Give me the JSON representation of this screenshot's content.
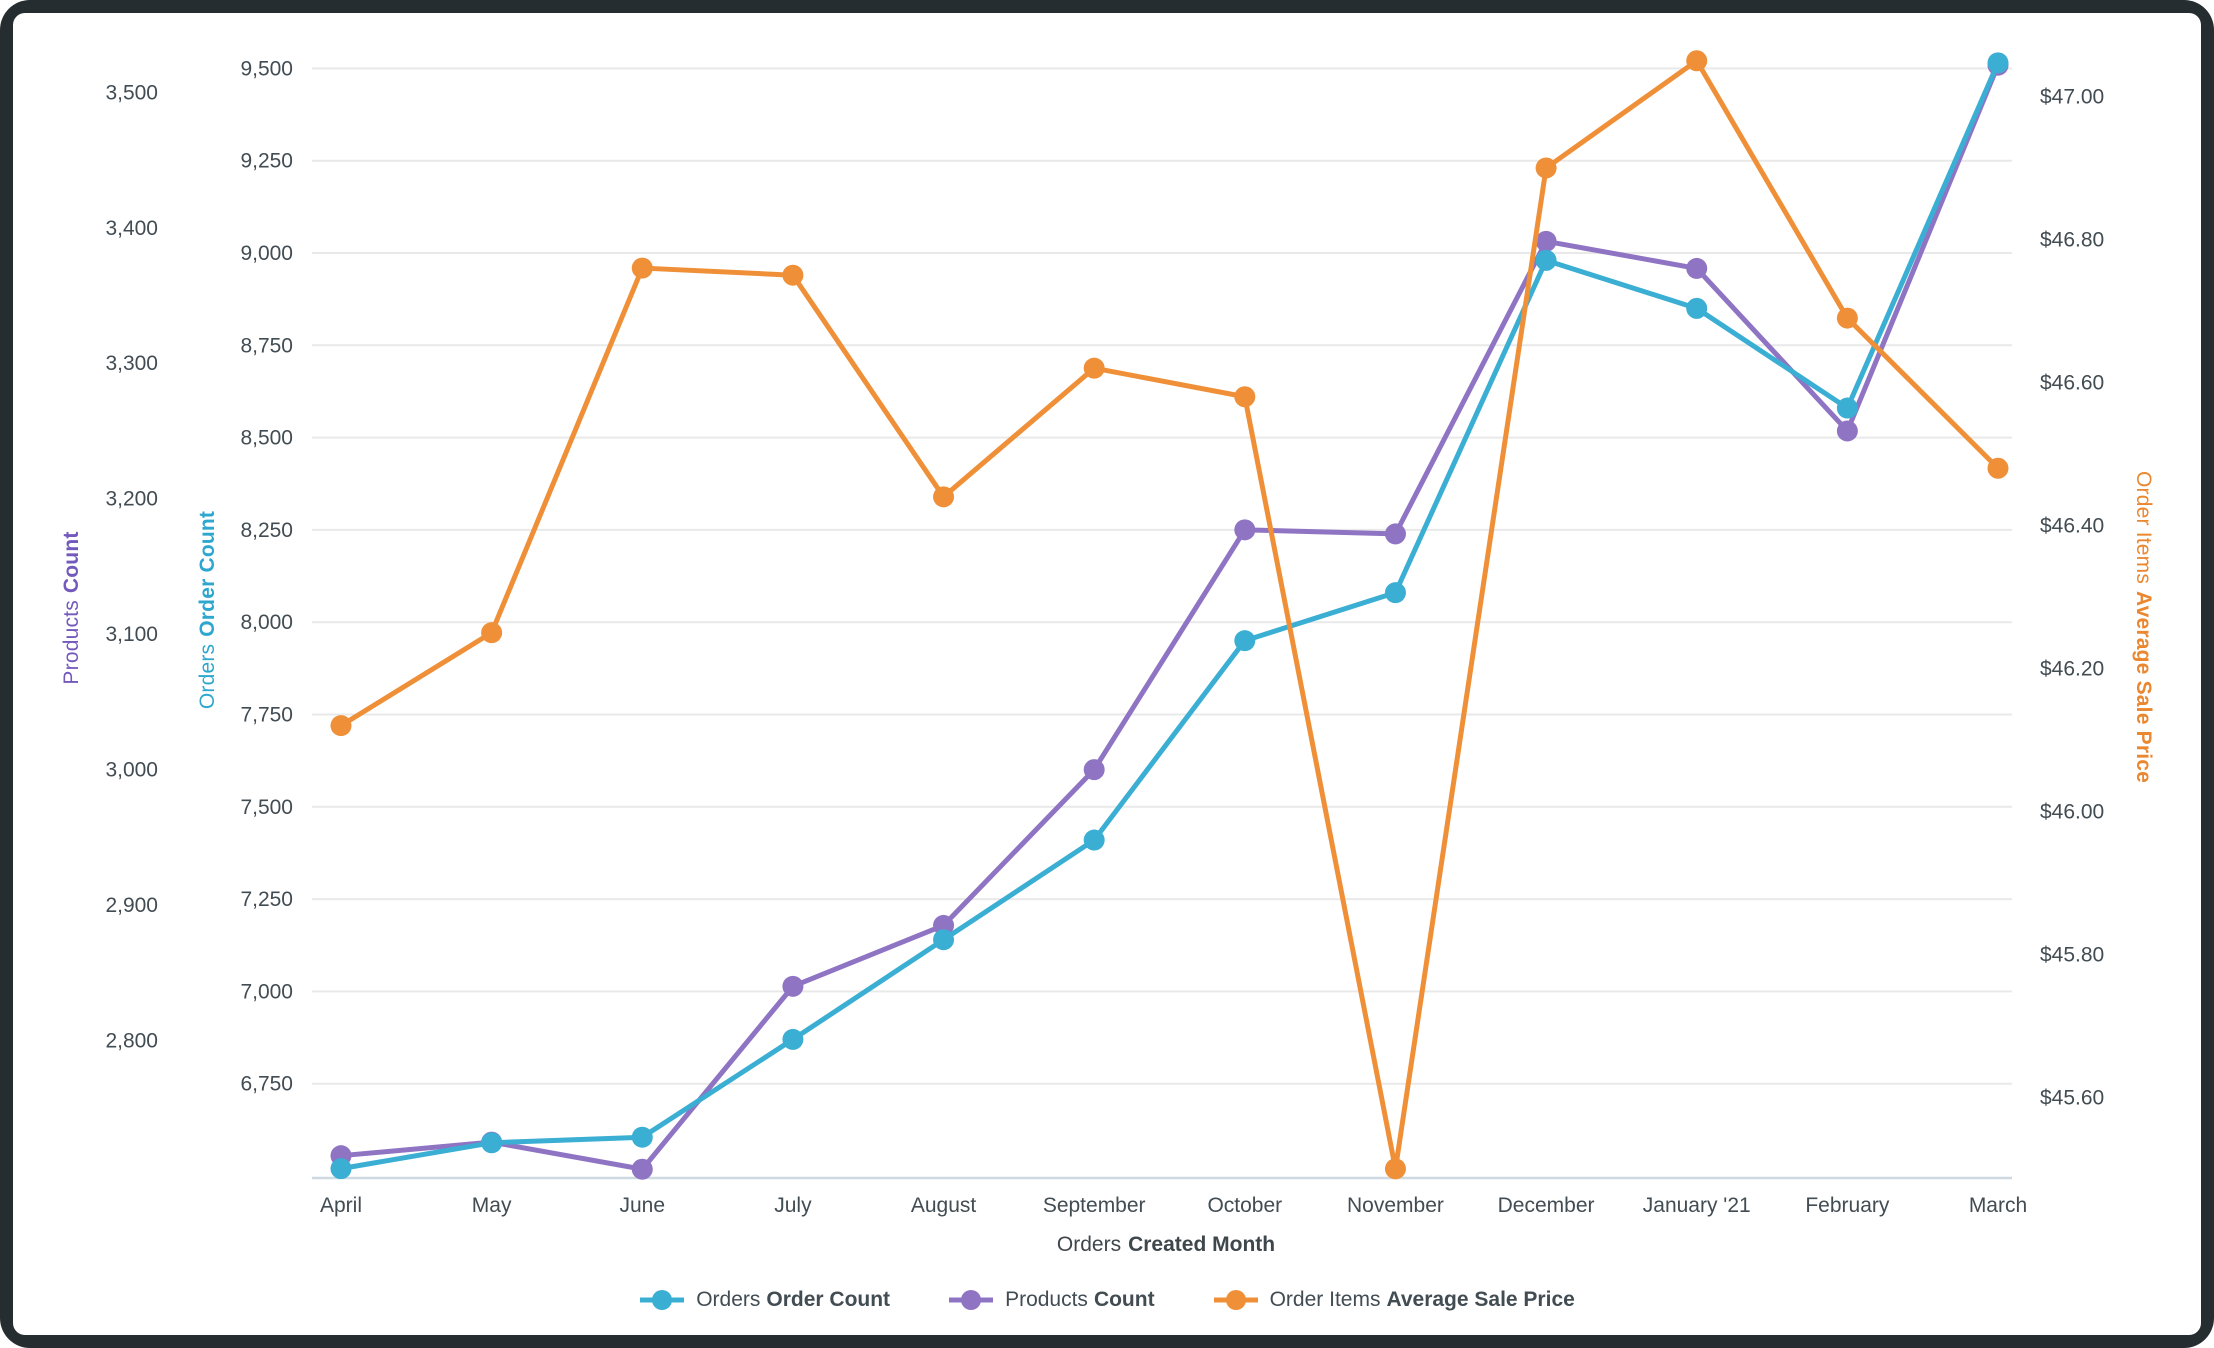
{
  "chart_data": {
    "type": "line",
    "categories": [
      "April",
      "May",
      "June",
      "July",
      "August",
      "September",
      "October",
      "November",
      "December",
      "January '21",
      "February",
      "March"
    ],
    "x_axis": {
      "title_prefix": "Orders",
      "title_bold": "Created Month"
    },
    "axes": {
      "products": {
        "title_prefix": "Products",
        "title_bold": "Count",
        "title_color": "#7459bd",
        "min": 2700,
        "max": 3546,
        "tick_values": [
          2800,
          2900,
          3000,
          3100,
          3200,
          3300,
          3400,
          3500
        ],
        "tick_labels": [
          "2,800",
          "2,900",
          "3,000",
          "3,100",
          "3,200",
          "3,300",
          "3,400",
          "3,500"
        ]
      },
      "orders": {
        "title_prefix": "Orders",
        "title_bold": "Order Count",
        "title_color": "#2ea7cf",
        "min": 6500,
        "max": 9604,
        "tick_values": [
          6750,
          7000,
          7250,
          7500,
          7750,
          8000,
          8250,
          8500,
          8750,
          9000,
          9250,
          9500
        ],
        "tick_labels": [
          "6,750",
          "7,000",
          "7,250",
          "7,500",
          "7,750",
          "8,000",
          "8,250",
          "8,500",
          "8,750",
          "9,000",
          "9,250",
          "9,500"
        ]
      },
      "price": {
        "title_prefix": "Order Items",
        "title_bold": "Average Sale Price",
        "title_color": "#ea872f",
        "min": 45.49,
        "max": 47.093,
        "tick_values": [
          45.6,
          45.8,
          46.0,
          46.2,
          46.4,
          46.6,
          46.8,
          47.0
        ],
        "tick_labels": [
          "$45.60",
          "$45.80",
          "$46.00",
          "$46.20",
          "$46.40",
          "$46.60",
          "$46.80",
          "$47.00"
        ]
      }
    },
    "series": [
      {
        "id": "products",
        "label_prefix": "Products",
        "label_bold": "Count",
        "color": "#8f74c4",
        "axis": "products",
        "values": [
          2715,
          2725,
          2705,
          2840,
          2885,
          3000,
          3177,
          3174,
          3390,
          3370,
          3250,
          3520
        ]
      },
      {
        "id": "orders",
        "label_prefix": "Orders",
        "label_bold": "Order Count",
        "color": "#3aaed3",
        "axis": "orders",
        "values": [
          6520,
          6590,
          6605,
          6870,
          7140,
          7410,
          7950,
          8080,
          8980,
          8850,
          8580,
          9515
        ]
      },
      {
        "id": "price",
        "label_prefix": "Order Items",
        "label_bold": "Average Sale Price",
        "color": "#ef9038",
        "axis": "price",
        "values": [
          46.12,
          46.25,
          46.76,
          46.75,
          46.44,
          46.62,
          46.58,
          45.5,
          46.9,
          47.05,
          46.69,
          46.48
        ]
      }
    ],
    "legend_order": [
      "orders",
      "products",
      "price"
    ],
    "grid": {
      "line_color": "#e9e9e9",
      "baseline_color": "#cfd9e2",
      "tick_text_color": "#424c53"
    }
  }
}
